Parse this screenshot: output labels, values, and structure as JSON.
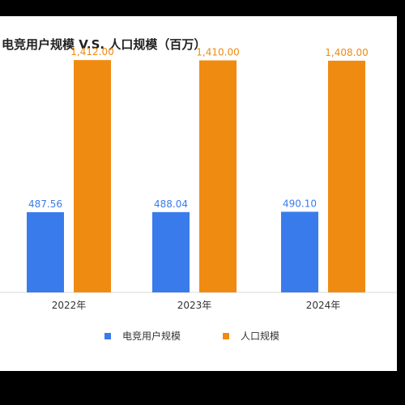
{
  "chart_data": {
    "type": "bar",
    "title": "电竞用户规模 V.S. 人口规模（百万）",
    "categories": [
      "2022年",
      "2023年",
      "2024年"
    ],
    "series": [
      {
        "name": "电竞用户规模",
        "color": "#3a7bec",
        "values": [
          487.56,
          488.04,
          490.1
        ],
        "labels": [
          "487.56",
          "488.04",
          "490.10"
        ]
      },
      {
        "name": "人口规模",
        "color": "#f08b12",
        "values": [
          1412.0,
          1410.0,
          1408.0
        ],
        "labels": [
          "1,412.00",
          "1,410.00",
          "1,408.00"
        ]
      }
    ],
    "ylim": [
      0,
      1580
    ],
    "grid": false,
    "legend_position": "bottom"
  }
}
